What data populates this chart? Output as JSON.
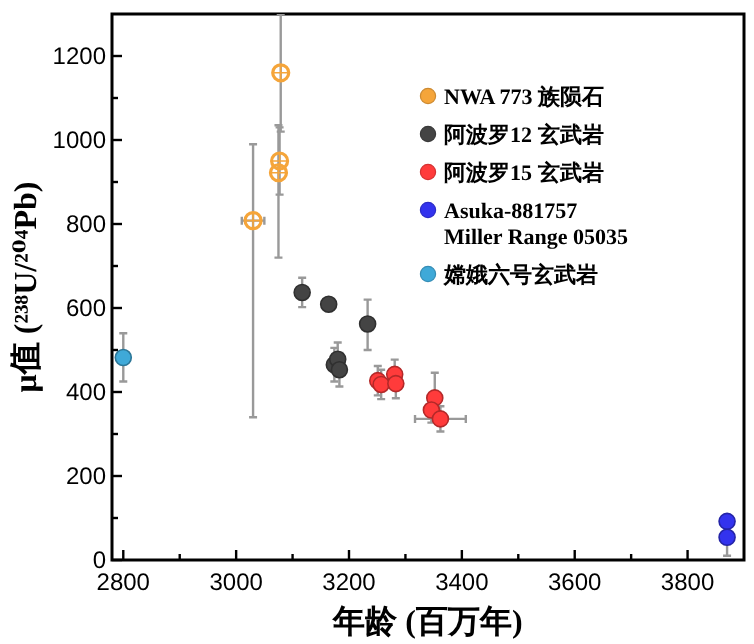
{
  "chart_data": {
    "type": "scatter",
    "xlabel": "年龄 (百万年)",
    "ylabel": "μ值 (²³⁸U/²⁰⁴Pb)",
    "xlim": [
      2780,
      3900
    ],
    "ylim": [
      0,
      1300
    ],
    "xticks": [
      2800,
      {
        "value": 2900,
        "label": null
      },
      3000,
      {
        "value": 3100,
        "label": null
      },
      3200,
      {
        "value": 3300,
        "label": null
      },
      3400,
      {
        "value": 3500,
        "label": null
      },
      3600,
      {
        "value": 3700,
        "label": null
      },
      3800
    ],
    "yticks": [
      0,
      {
        "value": 100,
        "label": null
      },
      200,
      {
        "value": 300,
        "label": null
      },
      400,
      {
        "value": 500,
        "label": null
      },
      600,
      {
        "value": 700,
        "label": null
      },
      800,
      {
        "value": 900,
        "label": null
      },
      1000,
      {
        "value": 1100,
        "label": null
      },
      1200
    ],
    "marker": "circle",
    "legend": "top right",
    "grid": false,
    "series": [
      {
        "name": "NWA 773 族陨石",
        "color": "#f5a53a",
        "x": [
          3030,
          3079,
          3077,
          3075
        ],
        "values": [
          808,
          1160,
          950,
          922
        ],
        "errors": [
          [
            340,
            990
          ],
          [
            1020,
            1300
          ],
          [
            870,
            1030
          ],
          [
            720,
            1035
          ]
        ],
        "xerrors": [
          20,
          null,
          null,
          null
        ]
      },
      {
        "name": "阿波罗12 玄武岩",
        "color": "#444444",
        "x": [
          3117,
          3164,
          3233,
          3174,
          3180,
          3183
        ],
        "values": [
          637,
          609,
          562,
          465,
          478,
          453
        ],
        "errors": [
          35,
          null,
          [
            500,
            620
          ],
          40,
          40,
          40
        ],
        "xerrors": [
          null,
          null,
          null,
          null,
          null,
          null
        ]
      },
      {
        "name": "阿波罗15 玄武岩",
        "color": "#ff3b3b",
        "x": [
          3251,
          3257,
          3281,
          3283,
          3352,
          3346,
          3362
        ],
        "values": [
          427,
          418,
          442,
          420,
          386,
          357,
          336
        ],
        "errors": [
          35,
          35,
          35,
          35,
          [
            330,
            446
          ],
          30,
          30
        ],
        "xerrors": [
          null,
          null,
          null,
          null,
          null,
          null,
          45
        ]
      },
      {
        "name": "Asuka-881757\nMiller Range 05035",
        "color": "#3333ee",
        "x": [
          3870,
          3870
        ],
        "values": [
          92,
          54
        ],
        "errors": [
          null,
          [
            10,
            54
          ]
        ],
        "xerrors": [
          null,
          null
        ]
      },
      {
        "name": "嫦娥六号玄武岩",
        "color": "#3fa9d8",
        "x": [
          2800
        ],
        "values": [
          482
        ],
        "errors": [
          [
            425,
            540
          ]
        ],
        "xerrors": [
          null
        ]
      }
    ]
  }
}
